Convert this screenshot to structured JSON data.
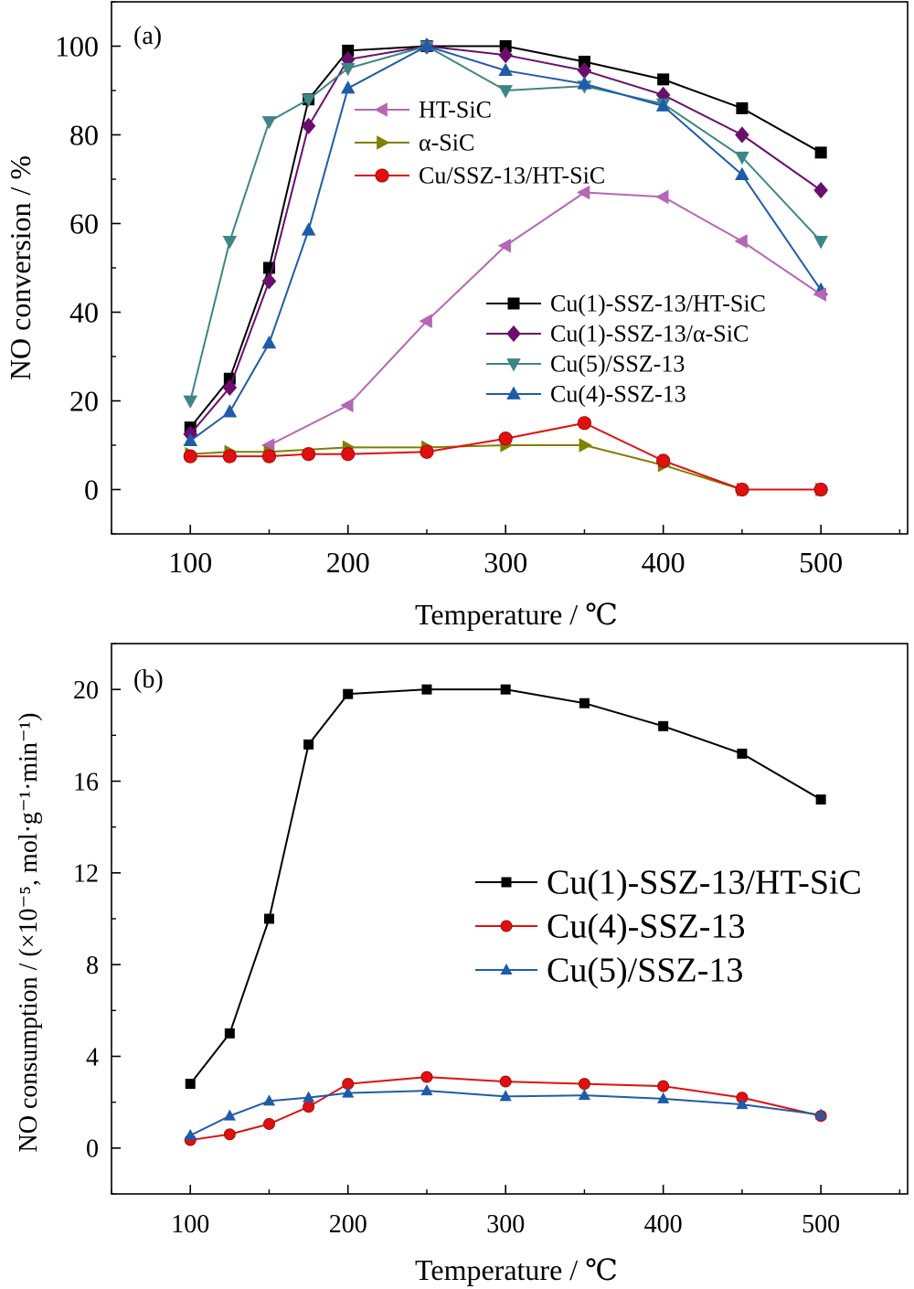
{
  "chart_data": [
    {
      "panel_label": "(a)",
      "type": "line",
      "xlabel": "Temperature / ℃",
      "ylabel": "NO conversion / %",
      "xlim": [
        50,
        555
      ],
      "ylim": [
        -10,
        110
      ],
      "xticks": [
        100,
        200,
        300,
        400,
        500
      ],
      "yticks": [
        0,
        20,
        40,
        60,
        80,
        100
      ],
      "legends": [
        {
          "position": "upper-middle",
          "series": [
            4,
            5,
            6
          ]
        },
        {
          "position": "middle-right",
          "series": [
            0,
            1,
            2,
            3
          ]
        }
      ],
      "series": [
        {
          "name": "Cu(1)-SSZ-13/HT-SiC",
          "color": "#000000",
          "marker": "square",
          "x": [
            100,
            125,
            150,
            175,
            200,
            250,
            300,
            350,
            400,
            450,
            500
          ],
          "y": [
            14,
            25,
            50,
            88,
            99,
            100,
            100,
            96.5,
            92.5,
            86,
            76
          ]
        },
        {
          "name": "Cu(1)-SSZ-13/α-SiC",
          "color": "#6a0f6b",
          "marker": "diamond",
          "x": [
            100,
            125,
            150,
            175,
            200,
            250,
            300,
            350,
            400,
            450,
            500
          ],
          "y": [
            12.5,
            23,
            47,
            82,
            97,
            100,
            98,
            94.5,
            89,
            80,
            67.5
          ]
        },
        {
          "name": "Cu(5)/SSZ-13",
          "color": "#3f8585",
          "marker": "triangle-down",
          "x": [
            100,
            125,
            150,
            175,
            200,
            250,
            300,
            350,
            400,
            450,
            500
          ],
          "y": [
            20,
            56,
            83,
            88,
            95,
            100,
            90,
            91,
            87,
            75,
            56
          ]
        },
        {
          "name": "Cu(4)-SSZ-13",
          "color": "#1f5ca8",
          "marker": "triangle-up",
          "x": [
            100,
            125,
            150,
            175,
            200,
            250,
            300,
            350,
            400,
            450,
            500
          ],
          "y": [
            11,
            17.5,
            33,
            58.5,
            90.5,
            100,
            94.5,
            91.5,
            86.5,
            71,
            45
          ]
        },
        {
          "name": "HT-SiC",
          "color": "#b566b5",
          "marker": "triangle-left",
          "x": [
            150,
            200,
            250,
            300,
            350,
            400,
            450,
            500
          ],
          "y": [
            10,
            19,
            38,
            55,
            67,
            66,
            56,
            44
          ]
        },
        {
          "name": "α-SiC",
          "color": "#7f7f00",
          "marker": "triangle-right",
          "x": [
            100,
            125,
            150,
            200,
            250,
            300,
            350,
            400,
            450,
            500
          ],
          "y": [
            8,
            8.5,
            8.5,
            9.5,
            9.5,
            10,
            10,
            5.5,
            0,
            0
          ]
        },
        {
          "name": "Cu/SSZ-13/HT-SiC",
          "color": "#e01010",
          "marker": "circle",
          "x": [
            100,
            125,
            150,
            175,
            200,
            250,
            300,
            350,
            400,
            450,
            500
          ],
          "y": [
            7.5,
            7.5,
            7.5,
            8,
            8,
            8.5,
            11.5,
            15,
            6.5,
            0,
            0
          ]
        }
      ]
    },
    {
      "panel_label": "(b)",
      "type": "line",
      "xlabel": "Temperature / ℃",
      "ylabel": "NO consumption / (×10⁻⁵, mol·g⁻¹·min⁻¹)",
      "xlim": [
        50,
        555
      ],
      "ylim": [
        -2,
        22
      ],
      "xticks": [
        100,
        200,
        300,
        400,
        500
      ],
      "yticks": [
        0,
        4,
        8,
        12,
        16,
        20
      ],
      "legends": [
        {
          "position": "middle-right",
          "series": [
            0,
            1,
            2
          ]
        }
      ],
      "series": [
        {
          "name": "Cu(1)-SSZ-13/HT-SiC",
          "color": "#000000",
          "marker": "square",
          "x": [
            100,
            125,
            150,
            175,
            200,
            250,
            300,
            350,
            400,
            450,
            500
          ],
          "y": [
            2.8,
            5.0,
            10.0,
            17.6,
            19.8,
            20.0,
            20.0,
            19.4,
            18.4,
            17.2,
            15.2
          ]
        },
        {
          "name": "Cu(4)-SSZ-13",
          "color": "#e01010",
          "marker": "circle",
          "x": [
            100,
            125,
            150,
            175,
            200,
            250,
            300,
            350,
            400,
            450,
            500
          ],
          "y": [
            0.35,
            0.6,
            1.05,
            1.8,
            2.8,
            3.1,
            2.9,
            2.8,
            2.7,
            2.2,
            1.4
          ]
        },
        {
          "name": "Cu(5)/SSZ-13",
          "color": "#1f5ca8",
          "marker": "triangle-up",
          "x": [
            100,
            125,
            150,
            175,
            200,
            250,
            300,
            350,
            400,
            450,
            500
          ],
          "y": [
            0.55,
            1.4,
            2.05,
            2.2,
            2.4,
            2.5,
            2.25,
            2.3,
            2.15,
            1.9,
            1.45
          ]
        }
      ]
    }
  ]
}
